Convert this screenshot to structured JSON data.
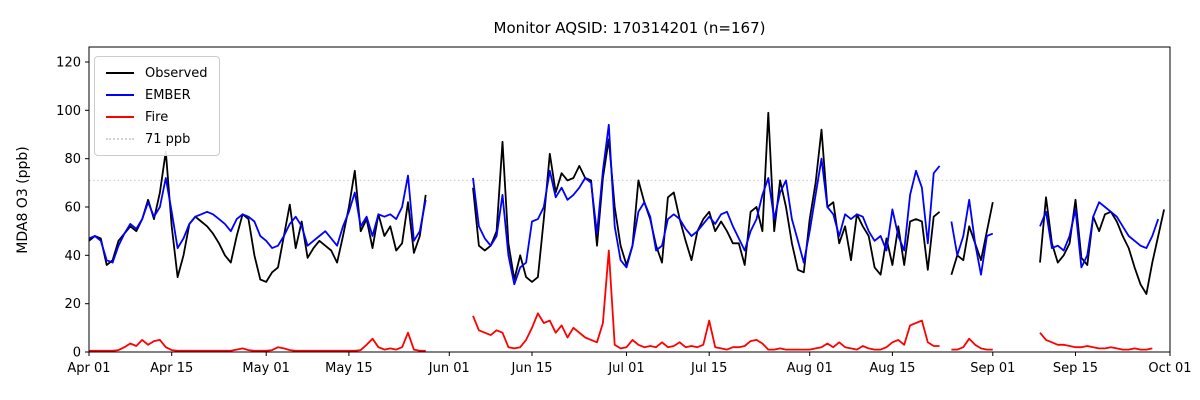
{
  "title": "Monitor AQSID: 170314201 (n=167)",
  "chart_data": {
    "type": "line",
    "title": "Monitor AQSID: 170314201 (n=167)",
    "xlabel": "",
    "ylabel": "MDA8 O3 (ppb)",
    "grid": false,
    "legend_position": "upper left",
    "y_ticks": [
      0,
      20,
      40,
      60,
      80,
      100,
      120
    ],
    "ylim": [
      0,
      126
    ],
    "x_axis_unit": "day offset from Apr 01",
    "x_total_days": 183,
    "x_ticks": [
      {
        "day": 0,
        "label": "Apr 01"
      },
      {
        "day": 14,
        "label": "Apr 15"
      },
      {
        "day": 30,
        "label": "May 01"
      },
      {
        "day": 44,
        "label": "May 15"
      },
      {
        "day": 61,
        "label": "Jun 01"
      },
      {
        "day": 75,
        "label": "Jun 15"
      },
      {
        "day": 91,
        "label": "Jul 01"
      },
      {
        "day": 105,
        "label": "Jul 15"
      },
      {
        "day": 122,
        "label": "Aug 01"
      },
      {
        "day": 136,
        "label": "Aug 15"
      },
      {
        "day": 153,
        "label": "Sep 01"
      },
      {
        "day": 167,
        "label": "Sep 15"
      },
      {
        "day": 183,
        "label": "Oct 01"
      }
    ],
    "reference_line": {
      "value": 71,
      "label": "71 ppb",
      "color": "#d3d3d3",
      "style": "dotted"
    },
    "series": [
      {
        "name": "Observed",
        "color": "#000000",
        "values": [
          46,
          48,
          47,
          36,
          38,
          46,
          49,
          52,
          50,
          55,
          63,
          55,
          66,
          83,
          52,
          31,
          40,
          53,
          56,
          54,
          52,
          49,
          45,
          40,
          37,
          48,
          57,
          55,
          40,
          30,
          29,
          33,
          35,
          48,
          61,
          43,
          54,
          39,
          43,
          46,
          44,
          42,
          37,
          48,
          60,
          75,
          50,
          55,
          43,
          57,
          48,
          52,
          42,
          45,
          62,
          41,
          48,
          65,
          null,
          null,
          null,
          null,
          null,
          null,
          null,
          68,
          44,
          42,
          44,
          50,
          87,
          45,
          30,
          40,
          31,
          29,
          31,
          55,
          82,
          66,
          74,
          71,
          72,
          77,
          72,
          71,
          44,
          72,
          88,
          60,
          44,
          36,
          44,
          71,
          62,
          55,
          44,
          37,
          64,
          66,
          55,
          46,
          38,
          50,
          55,
          58,
          50,
          54,
          50,
          45,
          45,
          36,
          58,
          60,
          50,
          99,
          50,
          71,
          60,
          45,
          34,
          33,
          55,
          70,
          92,
          60,
          62,
          45,
          52,
          38,
          57,
          52,
          48,
          35,
          32,
          47,
          36,
          52,
          36,
          54,
          55,
          54,
          34,
          56,
          58,
          null,
          32,
          40,
          38,
          52,
          45,
          38,
          50,
          62,
          null,
          null,
          null,
          null,
          null,
          null,
          null,
          37,
          64,
          45,
          37,
          40,
          45,
          63,
          39,
          36,
          56,
          50,
          57,
          58,
          54,
          48,
          43,
          35,
          28,
          24,
          37,
          48,
          59
        ]
      },
      {
        "name": "EMBER",
        "color": "#0000ff",
        "values": [
          47,
          48,
          46,
          38,
          37,
          44,
          49,
          53,
          51,
          55,
          62,
          56,
          60,
          72,
          58,
          43,
          47,
          53,
          56,
          57,
          58,
          57,
          55,
          53,
          50,
          55,
          57,
          56,
          54,
          48,
          46,
          43,
          44,
          48,
          53,
          56,
          52,
          44,
          46,
          48,
          50,
          47,
          44,
          52,
          58,
          66,
          52,
          56,
          48,
          57,
          56,
          57,
          55,
          60,
          73,
          46,
          50,
          63,
          null,
          null,
          null,
          null,
          null,
          null,
          null,
          72,
          52,
          47,
          44,
          48,
          65,
          40,
          28,
          35,
          37,
          54,
          55,
          60,
          75,
          64,
          68,
          63,
          65,
          68,
          72,
          70,
          49,
          75,
          94,
          52,
          38,
          35,
          44,
          58,
          62,
          56,
          42,
          44,
          55,
          57,
          55,
          51,
          48,
          50,
          53,
          56,
          53,
          57,
          58,
          52,
          47,
          42,
          50,
          55,
          65,
          72,
          55,
          66,
          71,
          55,
          46,
          37,
          50,
          65,
          80,
          60,
          57,
          48,
          57,
          55,
          57,
          56,
          50,
          46,
          48,
          42,
          59,
          48,
          42,
          65,
          75,
          68,
          45,
          74,
          77,
          null,
          54,
          40,
          48,
          63,
          45,
          32,
          48,
          49,
          null,
          null,
          null,
          null,
          null,
          null,
          null,
          52,
          58,
          43,
          44,
          42,
          48,
          59,
          35,
          40,
          56,
          62,
          60,
          58,
          56,
          52,
          48,
          46,
          44,
          43,
          48,
          55,
          null
        ]
      },
      {
        "name": "Fire",
        "color": "#ff0000",
        "values": [
          0.5,
          0.5,
          0.5,
          0.5,
          0.5,
          0.8,
          2,
          3.5,
          2.5,
          5,
          3,
          4.5,
          5,
          2,
          0.8,
          0.5,
          0.5,
          0.5,
          0.5,
          0.5,
          0.5,
          0.5,
          0.5,
          0.5,
          0.5,
          1,
          1.5,
          0.8,
          0.5,
          0.5,
          0.5,
          0.8,
          2,
          1.5,
          0.8,
          0.5,
          0.5,
          0.5,
          0.5,
          0.5,
          0.5,
          0.5,
          0.5,
          0.5,
          0.5,
          0.5,
          0.8,
          3,
          5.5,
          2,
          1,
          1.5,
          1,
          2,
          8,
          1,
          0.5,
          0.5,
          null,
          null,
          null,
          null,
          null,
          null,
          null,
          15,
          9,
          8,
          7,
          9,
          8,
          2,
          1.5,
          2,
          5,
          10,
          16,
          12,
          13,
          8,
          11,
          6,
          10,
          8,
          6,
          5,
          4,
          12,
          42,
          3,
          1.5,
          2,
          5,
          3,
          2,
          2.5,
          2,
          4,
          2,
          2.5,
          4,
          2,
          2.5,
          2,
          3,
          13,
          2,
          1.5,
          1,
          2,
          2,
          2.5,
          4.5,
          5,
          3.5,
          1,
          1,
          1.5,
          1,
          1,
          1,
          1,
          1,
          1.5,
          2,
          3.5,
          2,
          4,
          2,
          1.5,
          1,
          2.5,
          1.5,
          1,
          1,
          2,
          4,
          5,
          3,
          11,
          12,
          13,
          4,
          2.5,
          2.5,
          null,
          1,
          1,
          2,
          5.5,
          3,
          1.5,
          1,
          1,
          null,
          null,
          null,
          null,
          null,
          null,
          null,
          8,
          5,
          4,
          3,
          3,
          2.5,
          2,
          2,
          2.5,
          2,
          1.5,
          1.5,
          2,
          1.5,
          1,
          1,
          1.5,
          1,
          1,
          1.5,
          null,
          null
        ]
      }
    ]
  }
}
